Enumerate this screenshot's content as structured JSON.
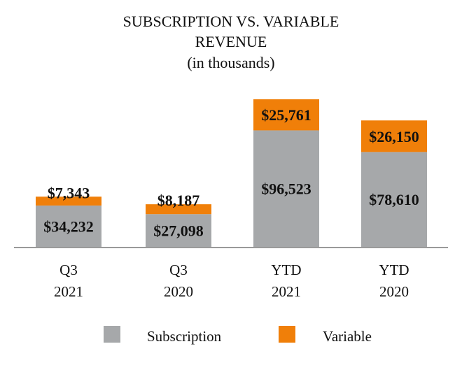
{
  "chart_data": {
    "type": "bar",
    "stacked": true,
    "title": "SUBSCRIPTION VS. VARIABLE REVENUE",
    "title_lines": [
      "SUBSCRIPTION VS. VARIABLE",
      "REVENUE"
    ],
    "subtitle": "(in thousands)",
    "categories": [
      [
        "Q3",
        "2021"
      ],
      [
        "Q3",
        "2020"
      ],
      [
        "YTD",
        "2021"
      ],
      [
        "YTD",
        "2020"
      ]
    ],
    "series": [
      {
        "name": "Subscription",
        "color": "#A6A8AA",
        "values": [
          34232,
          27098,
          96523,
          78610
        ],
        "labels": [
          "$34,232",
          "$27,098",
          "$96,523",
          "$78,610"
        ]
      },
      {
        "name": "Variable",
        "color": "#F07F09",
        "values": [
          7343,
          8187,
          25761,
          26150
        ],
        "labels": [
          "$7,343",
          "$8,187",
          "$25,761",
          "$26,150"
        ]
      }
    ],
    "xlabel": "",
    "ylabel": "",
    "ylim": [
      0,
      130000
    ],
    "grid": false,
    "legend": "bottom-center"
  }
}
